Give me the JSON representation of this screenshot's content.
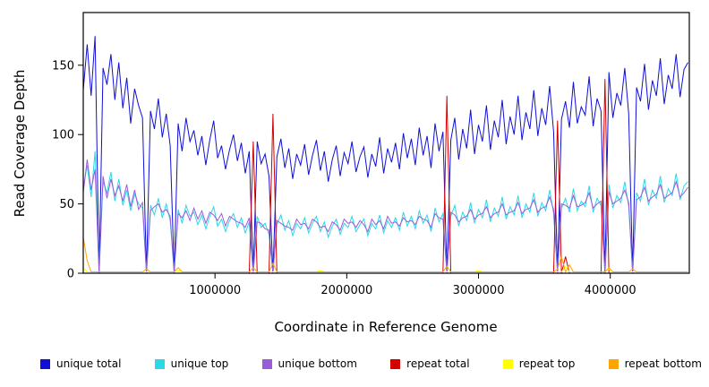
{
  "chart_data": {
    "type": "line",
    "title": "",
    "xlabel": "Coordinate in Reference Genome",
    "ylabel": "Read Coverage Depth",
    "xlim": [
      0,
      4600000
    ],
    "ylim": [
      0,
      188
    ],
    "xticks": [
      1000000,
      2000000,
      3000000,
      4000000
    ],
    "yticks": [
      0,
      50,
      100,
      150
    ],
    "x_step": 30000,
    "grid": false,
    "legend_position": "bottom",
    "series": [
      {
        "name": "unique total",
        "color": "#0F0FD6",
        "values": [
          132,
          165,
          128,
          171,
          0,
          148,
          136,
          158,
          125,
          152,
          119,
          141,
          108,
          133,
          121,
          112,
          0,
          117,
          104,
          126,
          98,
          115,
          92,
          0,
          108,
          88,
          112,
          95,
          103,
          85,
          99,
          78,
          96,
          110,
          83,
          92,
          75,
          89,
          100,
          81,
          94,
          72,
          88,
          0,
          95,
          79,
          86,
          70,
          0,
          84,
          97,
          76,
          90,
          68,
          86,
          78,
          93,
          71,
          85,
          96,
          74,
          88,
          66,
          82,
          92,
          70,
          87,
          79,
          95,
          73,
          84,
          91,
          69,
          86,
          77,
          98,
          72,
          90,
          80,
          94,
          75,
          101,
          83,
          97,
          78,
          105,
          85,
          99,
          76,
          108,
          88,
          102,
          0,
          96,
          112,
          82,
          104,
          90,
          118,
          86,
          107,
          95,
          121,
          89,
          110,
          98,
          125,
          93,
          113,
          100,
          128,
          96,
          116,
          104,
          132,
          99,
          119,
          107,
          135,
          102,
          0,
          111,
          124,
          105,
          138,
          108,
          120,
          114,
          142,
          106,
          126,
          117,
          0,
          145,
          112,
          130,
          121,
          148,
          115,
          0,
          134,
          124,
          151,
          118,
          139,
          128,
          155,
          122,
          143,
          133,
          158,
          127,
          147,
          152
        ]
      },
      {
        "name": "unique top",
        "color": "#2AD8E8",
        "values": [
          62,
          78,
          55,
          88,
          0,
          66,
          58,
          73,
          52,
          68,
          49,
          60,
          45,
          57,
          50,
          47,
          0,
          49,
          42,
          54,
          40,
          50,
          38,
          0,
          46,
          36,
          49,
          41,
          44,
          35,
          42,
          32,
          41,
          48,
          34,
          39,
          30,
          38,
          43,
          33,
          40,
          29,
          37,
          0,
          41,
          33,
          36,
          28,
          0,
          35,
          42,
          31,
          38,
          27,
          36,
          32,
          40,
          29,
          36,
          41,
          30,
          37,
          26,
          34,
          39,
          28,
          36,
          33,
          41,
          30,
          35,
          39,
          27,
          36,
          32,
          42,
          29,
          38,
          33,
          40,
          31,
          44,
          34,
          41,
          32,
          45,
          36,
          42,
          30,
          47,
          37,
          43,
          0,
          41,
          49,
          34,
          44,
          38,
          51,
          36,
          46,
          40,
          53,
          37,
          47,
          41,
          55,
          39,
          48,
          42,
          56,
          40,
          50,
          44,
          58,
          41,
          51,
          45,
          60,
          43,
          0,
          47,
          54,
          44,
          61,
          45,
          52,
          48,
          63,
          44,
          54,
          49,
          0,
          64,
          47,
          56,
          51,
          66,
          48,
          0,
          58,
          52,
          68,
          49,
          60,
          54,
          70,
          51,
          61,
          56,
          72,
          53,
          63,
          66
        ]
      },
      {
        "name": "unique bottom",
        "color": "#9A5CD8",
        "values": [
          58,
          82,
          60,
          75,
          0,
          70,
          54,
          68,
          56,
          63,
          52,
          64,
          48,
          60,
          46,
          51,
          0,
          45,
          48,
          50,
          44,
          46,
          41,
          0,
          43,
          40,
          45,
          38,
          47,
          39,
          45,
          36,
          44,
          42,
          38,
          43,
          34,
          41,
          39,
          37,
          36,
          33,
          40,
          0,
          37,
          36,
          32,
          31,
          0,
          38,
          36,
          34,
          33,
          31,
          39,
          35,
          36,
          32,
          39,
          37,
          33,
          34,
          30,
          37,
          35,
          31,
          39,
          36,
          37,
          33,
          38,
          35,
          30,
          39,
          35,
          38,
          32,
          41,
          36,
          37,
          34,
          40,
          37,
          38,
          35,
          41,
          39,
          38,
          33,
          43,
          40,
          39,
          0,
          44,
          42,
          37,
          40,
          41,
          46,
          39,
          42,
          43,
          48,
          40,
          43,
          44,
          50,
          42,
          44,
          45,
          51,
          43,
          46,
          47,
          53,
          44,
          47,
          48,
          55,
          46,
          0,
          50,
          49,
          47,
          56,
          48,
          49,
          51,
          58,
          47,
          50,
          52,
          0,
          59,
          50,
          52,
          54,
          60,
          51,
          0,
          53,
          55,
          62,
          52,
          55,
          57,
          64,
          54,
          56,
          58,
          66,
          55,
          58,
          62
        ]
      },
      {
        "name": "repeat total",
        "color": "#D40000",
        "const": 0,
        "overrides": {
          "43": 95,
          "48": 115,
          "92": 128,
          "120": 110,
          "122": 12,
          "132": 140
        }
      },
      {
        "name": "repeat top",
        "color": "#FFFF00",
        "const": 1,
        "overrides": {
          "0": 4,
          "24": 2,
          "60": 2,
          "100": 2,
          "122": 5,
          "133": 3
        }
      },
      {
        "name": "repeat bottom",
        "color": "#FFA500",
        "const": 1,
        "overrides": {
          "0": 26,
          "1": 9,
          "16": 3,
          "24": 4,
          "43": 4,
          "48": 7,
          "92": 5,
          "120": 3,
          "121": 12,
          "123": 6,
          "133": 4,
          "139": 3
        }
      }
    ]
  },
  "legend": {
    "items": [
      {
        "label": "unique total"
      },
      {
        "label": "unique top"
      },
      {
        "label": "unique bottom"
      },
      {
        "label": "repeat total"
      },
      {
        "label": "repeat top"
      },
      {
        "label": "repeat bottom"
      }
    ]
  }
}
